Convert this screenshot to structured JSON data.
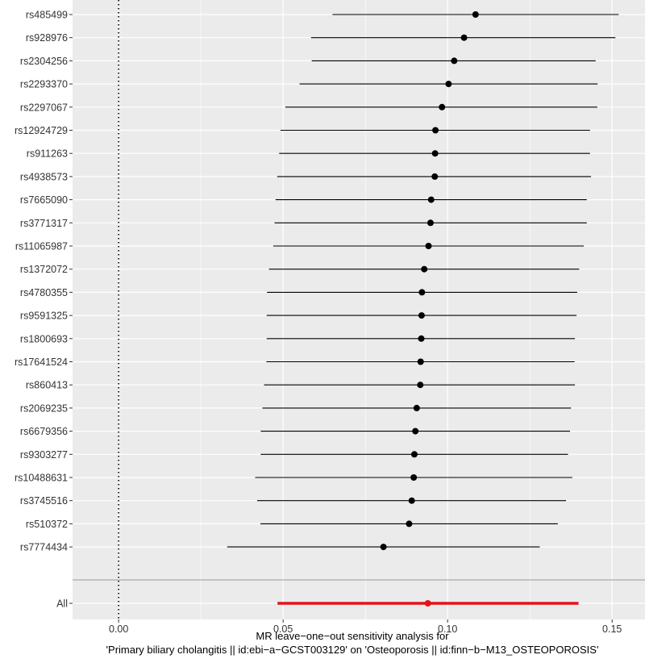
{
  "chart_data": {
    "type": "forest",
    "xlabel_line1": "MR leave−one−out sensitivity analysis for",
    "xlabel_line2": "'Primary biliary cholangitis || id:ebi−a−GCST003129' on 'Osteoporosis || id:finn−b−M13_OSTEOPOROSIS'",
    "xlim": [
      -0.014,
      0.16
    ],
    "x_ticks": [
      0.0,
      0.05,
      0.1,
      0.15
    ],
    "x_tick_labels": [
      "0.00",
      "0.05",
      "0.10",
      "0.15"
    ],
    "reference_line": 0,
    "grid": true,
    "colors": {
      "panel_background": "#ebebeb",
      "grid_line": "#ffffff",
      "point": "#000000",
      "overall": "#e8111a",
      "separator": "#aaaaaa"
    },
    "snps": [
      {
        "label": "rs485499",
        "estimate": 0.1085,
        "lower": 0.065,
        "upper": 0.152
      },
      {
        "label": "rs928976",
        "estimate": 0.105,
        "lower": 0.0585,
        "upper": 0.151
      },
      {
        "label": "rs2304256",
        "estimate": 0.102,
        "lower": 0.0587,
        "upper": 0.145
      },
      {
        "label": "rs2293370",
        "estimate": 0.1003,
        "lower": 0.055,
        "upper": 0.1456
      },
      {
        "label": "rs2297067",
        "estimate": 0.0983,
        "lower": 0.0507,
        "upper": 0.1455
      },
      {
        "label": "rs12924729",
        "estimate": 0.0963,
        "lower": 0.0492,
        "upper": 0.1433
      },
      {
        "label": "rs911263",
        "estimate": 0.0962,
        "lower": 0.0488,
        "upper": 0.1433
      },
      {
        "label": "rs4938573",
        "estimate": 0.0961,
        "lower": 0.0482,
        "upper": 0.1436
      },
      {
        "label": "rs7665090",
        "estimate": 0.095,
        "lower": 0.0477,
        "upper": 0.1423
      },
      {
        "label": "rs3771317",
        "estimate": 0.0948,
        "lower": 0.0474,
        "upper": 0.1423
      },
      {
        "label": "rs11065987",
        "estimate": 0.0942,
        "lower": 0.047,
        "upper": 0.1414
      },
      {
        "label": "rs1372072",
        "estimate": 0.0929,
        "lower": 0.0457,
        "upper": 0.14
      },
      {
        "label": "rs4780355",
        "estimate": 0.0922,
        "lower": 0.0451,
        "upper": 0.1394
      },
      {
        "label": "rs9591325",
        "estimate": 0.0921,
        "lower": 0.045,
        "upper": 0.1392
      },
      {
        "label": "rs1800693",
        "estimate": 0.092,
        "lower": 0.045,
        "upper": 0.1387
      },
      {
        "label": "rs17641524",
        "estimate": 0.0918,
        "lower": 0.0449,
        "upper": 0.1386
      },
      {
        "label": "rs860413",
        "estimate": 0.0917,
        "lower": 0.0442,
        "upper": 0.1387
      },
      {
        "label": "rs2069235",
        "estimate": 0.0906,
        "lower": 0.0437,
        "upper": 0.1375
      },
      {
        "label": "rs6679356",
        "estimate": 0.0902,
        "lower": 0.0432,
        "upper": 0.1372
      },
      {
        "label": "rs9303277",
        "estimate": 0.0899,
        "lower": 0.0432,
        "upper": 0.1366
      },
      {
        "label": "rs10488631",
        "estimate": 0.0897,
        "lower": 0.0415,
        "upper": 0.1379
      },
      {
        "label": "rs3745516",
        "estimate": 0.0891,
        "lower": 0.0421,
        "upper": 0.136
      },
      {
        "label": "rs510372",
        "estimate": 0.0883,
        "lower": 0.0431,
        "upper": 0.1335
      },
      {
        "label": "rs7774434",
        "estimate": 0.0805,
        "lower": 0.033,
        "upper": 0.128
      }
    ],
    "overall": {
      "label": "All",
      "estimate": 0.094,
      "lower": 0.0483,
      "upper": 0.1398
    }
  }
}
